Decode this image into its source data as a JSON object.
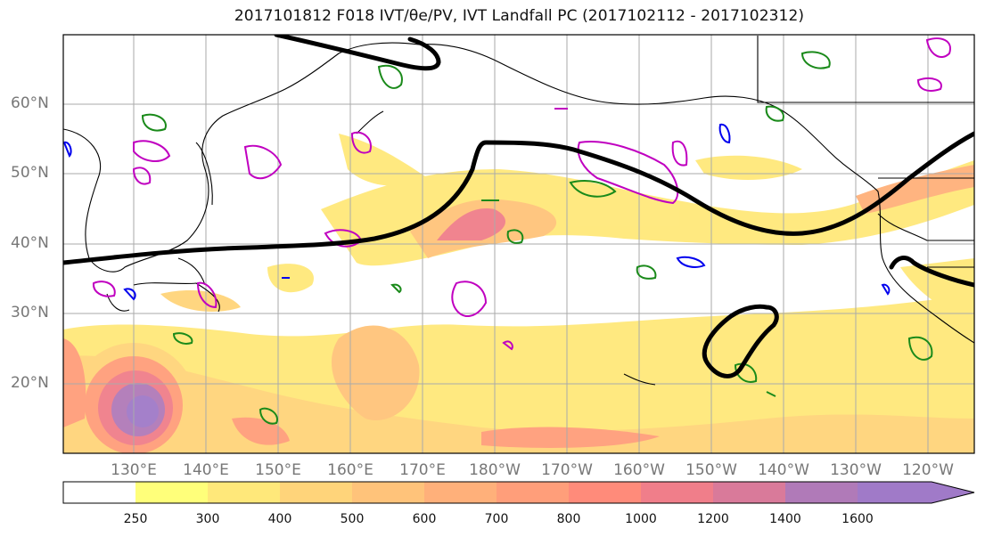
{
  "title": "2017101812 F018 IVT/θe/PV, IVT Landfall PC (2017102112 - 2017102312)",
  "lat_labels": [
    "60°N",
    "50°N",
    "40°N",
    "30°N",
    "20°N"
  ],
  "lon_labels": [
    "130°E",
    "140°E",
    "150°E",
    "160°E",
    "170°E",
    "180°W",
    "170°W",
    "160°W",
    "150°W",
    "140°W",
    "130°W",
    "120°W"
  ],
  "colorbar": {
    "levels": [
      "250",
      "300",
      "400",
      "500",
      "600",
      "700",
      "800",
      "1000",
      "1200",
      "1400",
      "1600"
    ],
    "colors": [
      "#ffffff",
      "#ffff7a",
      "#ffe87a",
      "#ffd47a",
      "#ffc37a",
      "#ffb07a",
      "#ff9e7a",
      "#ff8b7a",
      "#f07e8a",
      "#d97a9a",
      "#b07ab8",
      "#a07ac8"
    ]
  },
  "legend_colors": {
    "pv_contour": "#1a8a1a",
    "theta_e_contour": "#c000c0",
    "blue_contour": "#0000ee",
    "landfall_pc": "#000000"
  }
}
